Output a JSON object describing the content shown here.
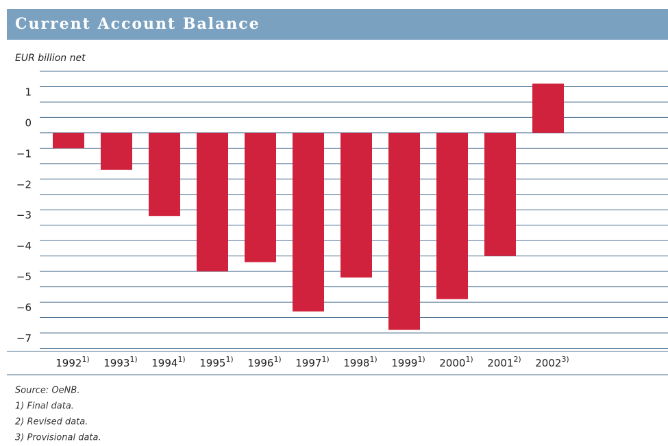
{
  "chart_data": {
    "type": "bar",
    "title": "Current Account Balance",
    "subtitle": "EUR billion net",
    "categories": [
      "1992",
      "1993",
      "1994",
      "1995",
      "1996",
      "1997",
      "1998",
      "1999",
      "2000",
      "2001",
      "2002"
    ],
    "category_notes": [
      "1)",
      "1)",
      "1)",
      "1)",
      "1)",
      "1)",
      "1)",
      "1)",
      "1)",
      "2)",
      "3)"
    ],
    "values": [
      -0.5,
      -1.2,
      -2.7,
      -4.5,
      -4.2,
      -5.8,
      -4.7,
      -6.4,
      -5.4,
      -4.0,
      1.6
    ],
    "color": "#d0223c",
    "ylim": [
      -7.1,
      2
    ],
    "yticks": [
      1,
      0,
      {
        "value": -1,
        "label": "−1"
      },
      {
        "value": -2,
        "label": "−2"
      },
      {
        "value": -3,
        "label": "−3"
      },
      {
        "value": -4,
        "label": "−4"
      },
      {
        "value": -5,
        "label": "−5"
      },
      {
        "value": -6,
        "label": "−6"
      },
      {
        "value": -7,
        "label": "−7"
      }
    ],
    "ygrid": [
      2,
      1.5,
      1,
      0.5,
      0,
      -0.5,
      -1,
      -1.5,
      -2,
      -2.5,
      -3,
      -3.5,
      -4,
      -4.5,
      -5,
      -5.5,
      -6,
      -6.5,
      -7
    ],
    "grid": true,
    "footnotes": [
      "Source: OeNB.",
      "1) Final data.",
      "2) Revised data.",
      "3) Provisional data."
    ]
  }
}
